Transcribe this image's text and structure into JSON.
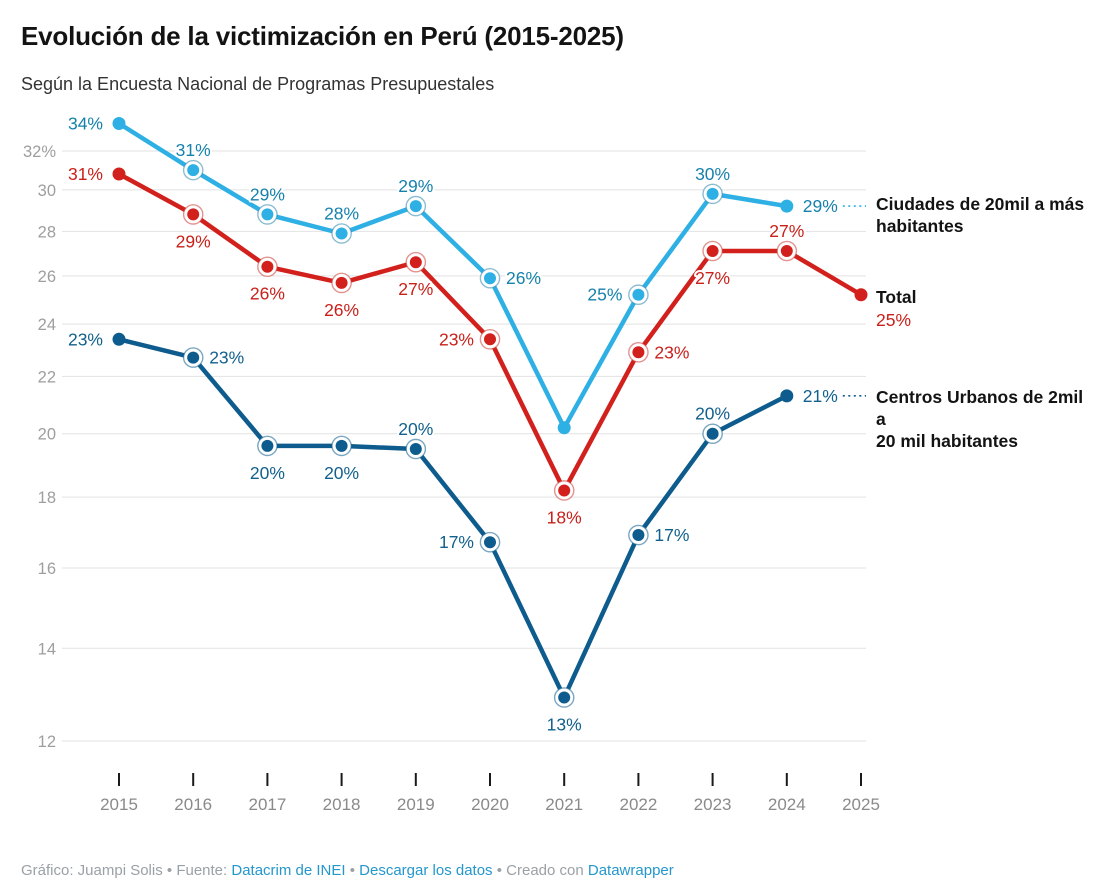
{
  "header": {
    "title": "Evolución de la victimización en Perú (2015-2025)",
    "subtitle": "Según la Encuesta Nacional de Programas Presupuestales"
  },
  "chart_data": {
    "type": "line",
    "title": "Evolución de la victimización en Perú (2015-2025)",
    "subtitle": "Según la Encuesta Nacional de Programas Presupuestales",
    "x": [
      2015,
      2016,
      2017,
      2018,
      2019,
      2020,
      2021,
      2022,
      2023,
      2024,
      2025
    ],
    "y_axis": {
      "scale": "log",
      "ylim": [
        12,
        34
      ],
      "grid": true,
      "ticks": [
        {
          "value": 32,
          "label": "32%"
        },
        {
          "value": 30,
          "label": "30"
        },
        {
          "value": 28,
          "label": "28"
        },
        {
          "value": 26,
          "label": "26"
        },
        {
          "value": 24,
          "label": "24"
        },
        {
          "value": 22,
          "label": "22"
        },
        {
          "value": 20,
          "label": "20"
        },
        {
          "value": 18,
          "label": "18"
        },
        {
          "value": 16,
          "label": "16"
        },
        {
          "value": 14,
          "label": "14"
        },
        {
          "value": 12,
          "label": "12"
        }
      ]
    },
    "axis_colors": {
      "y_label": "#9e9e9e",
      "x_label": "#8a8a8a",
      "grid": "#e2e2e2",
      "tick": "#1a1a1a"
    },
    "series": [
      {
        "name": "Ciudades de 20mil a más habitantes",
        "color": "#2EB0E4",
        "label_color": "#1682AC",
        "ring_color": "#2f85ab",
        "points": [
          {
            "year": 2015,
            "value": 33.5,
            "label": "34%",
            "label_pos": "left",
            "ring": false
          },
          {
            "year": 2016,
            "value": 31.0,
            "label": "31%",
            "label_pos": "above",
            "ring": true
          },
          {
            "year": 2017,
            "value": 28.8,
            "label": "29%",
            "label_pos": "above",
            "ring": true
          },
          {
            "year": 2018,
            "value": 27.9,
            "label": "28%",
            "label_pos": "above",
            "ring": true
          },
          {
            "year": 2019,
            "value": 29.2,
            "label": "29%",
            "label_pos": "above",
            "ring": true
          },
          {
            "year": 2020,
            "value": 25.9,
            "label": "26%",
            "label_pos": "right",
            "ring": true
          },
          {
            "year": 2021,
            "value": 20.2,
            "label": "",
            "label_pos": "none",
            "ring": false
          },
          {
            "year": 2022,
            "value": 25.2,
            "label": "25%",
            "label_pos": "left",
            "ring": true
          },
          {
            "year": 2023,
            "value": 29.8,
            "label": "30%",
            "label_pos": "above",
            "ring": true
          },
          {
            "year": 2024,
            "value": 29.2,
            "label": "29%",
            "label_pos": "right",
            "ring": false
          },
          {
            "year": 2025,
            "value": null,
            "label": "",
            "label_pos": "none",
            "ring": false
          }
        ]
      },
      {
        "name": "Total",
        "color": "#D2211D",
        "label_color": "#C92019",
        "ring_color": "#cb3a33",
        "points": [
          {
            "year": 2015,
            "value": 30.8,
            "label": "31%",
            "label_pos": "left",
            "ring": false
          },
          {
            "year": 2016,
            "value": 28.8,
            "label": "29%",
            "label_pos": "below",
            "ring": true
          },
          {
            "year": 2017,
            "value": 26.4,
            "label": "26%",
            "label_pos": "below",
            "ring": true
          },
          {
            "year": 2018,
            "value": 25.7,
            "label": "26%",
            "label_pos": "below",
            "ring": true
          },
          {
            "year": 2019,
            "value": 26.6,
            "label": "27%",
            "label_pos": "below",
            "ring": true
          },
          {
            "year": 2020,
            "value": 23.4,
            "label": "23%",
            "label_pos": "left",
            "ring": true
          },
          {
            "year": 2021,
            "value": 18.2,
            "label": "18%",
            "label_pos": "below",
            "ring": true
          },
          {
            "year": 2022,
            "value": 22.9,
            "label": "23%",
            "label_pos": "right",
            "ring": true
          },
          {
            "year": 2023,
            "value": 27.1,
            "label": "27%",
            "label_pos": "below",
            "ring": true
          },
          {
            "year": 2024,
            "value": 27.1,
            "label": "27%",
            "label_pos": "above",
            "ring": true
          },
          {
            "year": 2025,
            "value": 25.2,
            "label": "25%",
            "label_pos": "legend",
            "ring": false
          }
        ]
      },
      {
        "name": "Centros Urbanos de 2mil a 20 mil habitantes",
        "color": "#0D5C8D",
        "label_color": "#12608D",
        "ring_color": "#0d5c8d",
        "points": [
          {
            "year": 2015,
            "value": 23.4,
            "label": "23%",
            "label_pos": "left",
            "ring": false
          },
          {
            "year": 2016,
            "value": 22.7,
            "label": "23%",
            "label_pos": "right",
            "ring": true
          },
          {
            "year": 2017,
            "value": 19.6,
            "label": "20%",
            "label_pos": "below",
            "ring": true
          },
          {
            "year": 2018,
            "value": 19.6,
            "label": "20%",
            "label_pos": "below",
            "ring": true
          },
          {
            "year": 2019,
            "value": 19.5,
            "label": "20%",
            "label_pos": "above",
            "ring": true
          },
          {
            "year": 2020,
            "value": 16.7,
            "label": "17%",
            "label_pos": "left",
            "ring": true
          },
          {
            "year": 2021,
            "value": 12.9,
            "label": "13%",
            "label_pos": "below",
            "ring": true
          },
          {
            "year": 2022,
            "value": 16.9,
            "label": "17%",
            "label_pos": "right",
            "ring": true
          },
          {
            "year": 2023,
            "value": 20.0,
            "label": "20%",
            "label_pos": "above",
            "ring": true
          },
          {
            "year": 2024,
            "value": 21.3,
            "label": "21%",
            "label_pos": "right",
            "ring": false
          },
          {
            "year": 2025,
            "value": null,
            "label": "",
            "label_pos": "none",
            "ring": false
          }
        ]
      }
    ],
    "legend": [
      {
        "series_index": 0,
        "lines": [
          "Ciudades de 20mil a más",
          "habitantes"
        ],
        "value": "",
        "connector": true
      },
      {
        "series_index": 1,
        "lines": [
          "Total"
        ],
        "value": "25%",
        "connector": false
      },
      {
        "series_index": 2,
        "lines": [
          "Centros Urbanos de 2mil a",
          "20 mil habitantes"
        ],
        "value": "",
        "connector": true
      }
    ],
    "legend_position": "right"
  },
  "footer": {
    "segments": [
      {
        "text": "Gráfico: Juampi Solis",
        "link": false
      },
      {
        "text": " • ",
        "link": false
      },
      {
        "text": "Fuente: ",
        "link": false
      },
      {
        "text": "Datacrim de INEI",
        "link": true
      },
      {
        "text": " • ",
        "link": false
      },
      {
        "text": "Descargar los datos",
        "link": true
      },
      {
        "text": " • ",
        "link": false
      },
      {
        "text": "Creado con ",
        "link": false
      },
      {
        "text": "Datawrapper",
        "link": true
      }
    ],
    "link_color": "#2497CD"
  }
}
